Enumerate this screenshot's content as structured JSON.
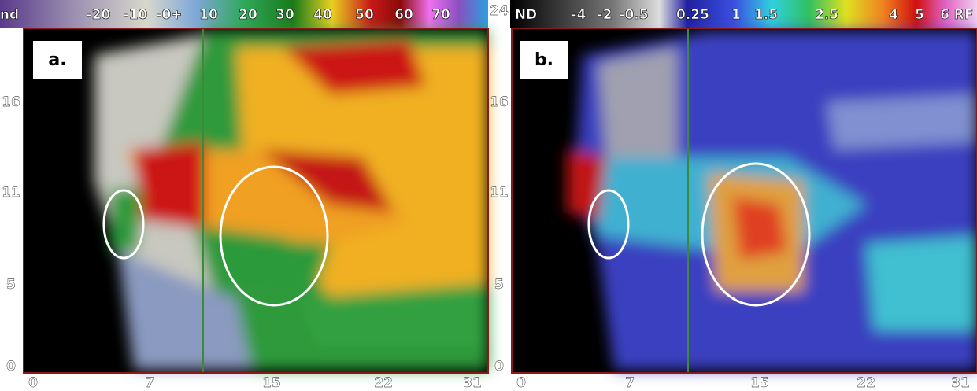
{
  "panels": [
    {
      "label": "a.",
      "colorbar": [
        "nd",
        "-20",
        "-10",
        "-0+",
        "10",
        "20",
        "30",
        "40",
        "50",
        "60",
        "70"
      ],
      "y_labels": [
        "16",
        "11",
        "5",
        "0"
      ],
      "x_labels": [
        "0",
        "7",
        "15",
        "22",
        "31"
      ]
    },
    {
      "label": "b.",
      "colorbar": [
        "ND",
        "-4",
        "-2",
        "-0.5",
        "0.25",
        "1",
        "1.5",
        "2.5",
        "4",
        "5",
        "6",
        "RF"
      ],
      "y_labels": [
        "24",
        "16",
        "11",
        "5",
        "0"
      ],
      "x_labels": [
        "0",
        "7",
        "15",
        "22",
        "31"
      ]
    }
  ]
}
